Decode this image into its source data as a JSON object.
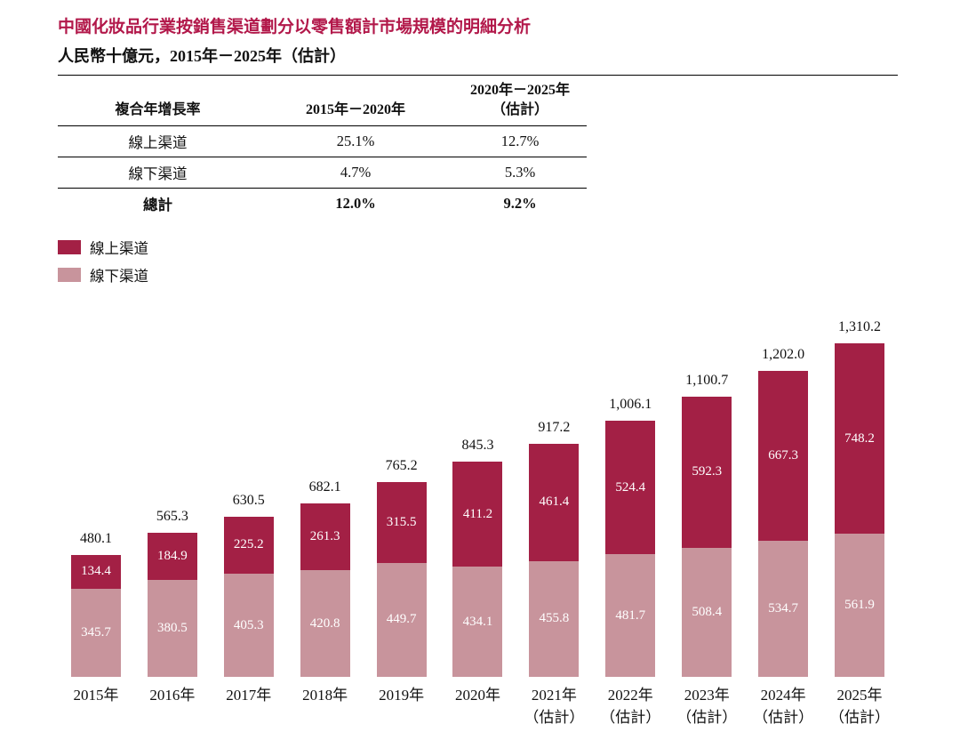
{
  "header": {
    "title": "中國化妝品行業按銷售渠道劃分以零售額計市場規模的明細分析",
    "subtitle": "人民幣十億元，2015年－2025年（估計）"
  },
  "colors": {
    "title": "#b2184a",
    "online": "#a32045",
    "offline": "#c8949c",
    "text": "#111111"
  },
  "cagr_table": {
    "headers": [
      "複合年增長率",
      "2015年－2020年",
      "2020年－2025年\n（估計）"
    ],
    "rows": [
      {
        "label": "線上渠道",
        "period1": "25.1%",
        "period2": "12.7%"
      },
      {
        "label": "線下渠道",
        "period1": "4.7%",
        "period2": "5.3%"
      },
      {
        "label": "總計",
        "period1": "12.0%",
        "period2": "9.2%"
      }
    ]
  },
  "legend": {
    "items": [
      {
        "label": "線上渠道",
        "color": "#a32045"
      },
      {
        "label": "線下渠道",
        "color": "#c8949c"
      }
    ]
  },
  "chart_data": {
    "type": "bar",
    "stacked": true,
    "title": "中國化妝品行業按銷售渠道劃分以零售額計市場規模的明細分析",
    "ylabel": "人民幣十億元",
    "grid": false,
    "legend_position": "top-left",
    "ylim": [
      0,
      1310.2
    ],
    "categories": [
      {
        "label": "2015年",
        "sub": ""
      },
      {
        "label": "2016年",
        "sub": ""
      },
      {
        "label": "2017年",
        "sub": ""
      },
      {
        "label": "2018年",
        "sub": ""
      },
      {
        "label": "2019年",
        "sub": ""
      },
      {
        "label": "2020年",
        "sub": ""
      },
      {
        "label": "2021年",
        "sub": "（估計）"
      },
      {
        "label": "2022年",
        "sub": "（估計）"
      },
      {
        "label": "2023年",
        "sub": "（估計）"
      },
      {
        "label": "2024年",
        "sub": "（估計）"
      },
      {
        "label": "2025年",
        "sub": "（估計）"
      }
    ],
    "series": [
      {
        "name": "線上渠道",
        "position": "top",
        "color": "#a32045",
        "values": [
          134.4,
          184.9,
          225.2,
          261.3,
          315.5,
          411.2,
          461.4,
          524.4,
          592.3,
          667.3,
          748.2
        ]
      },
      {
        "name": "線下渠道",
        "position": "bottom",
        "color": "#c8949c",
        "values": [
          345.7,
          380.5,
          405.3,
          420.8,
          449.7,
          434.1,
          455.8,
          481.7,
          508.4,
          534.7,
          561.9
        ]
      }
    ],
    "totals": [
      "480.1",
      "565.3",
      "630.5",
      "682.1",
      "765.2",
      "845.3",
      "917.2",
      "1,006.1",
      "1,100.7",
      "1,202.0",
      "1,310.2"
    ]
  }
}
